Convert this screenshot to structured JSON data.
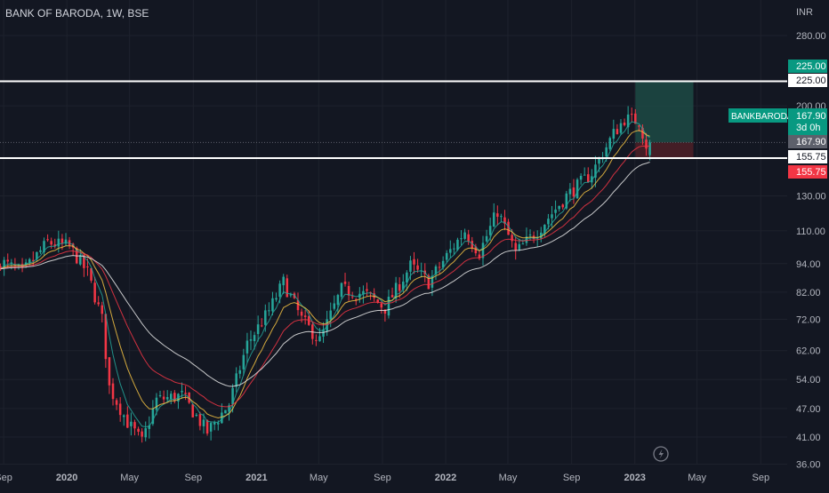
{
  "header": {
    "title": "BANK OF BARODA, 1W, BSE"
  },
  "price_axis": {
    "currency": "INR"
  },
  "symbol_tag": {
    "symbol": "BANKBARODA",
    "price": "167.90",
    "countdown": "3d 0h"
  },
  "price_labels": {
    "target": "225.00",
    "target_line": "225.00",
    "last": "167.90",
    "stop_line": "155.75",
    "stop": "155.75"
  },
  "colors": {
    "background": "#131722",
    "up": "#26a69a",
    "down": "#f23645",
    "ema_fast": "#26a69a",
    "ema_mid": "#f6c343",
    "ema_slow": "#f23645",
    "ema_long": "#e8e8e8",
    "target_zone": "#1d4a44",
    "stop_zone": "#4a1f27"
  },
  "chart_data": {
    "type": "candlestick",
    "title": "BANK OF BARODA, 1W, BSE",
    "yscale": "log",
    "ylim": [
      36,
      300
    ],
    "y_ticks": [
      280,
      225,
      200,
      155.75,
      130,
      110,
      94,
      82,
      72,
      62,
      54,
      47,
      41,
      36
    ],
    "y_tick_labels": [
      "280.00",
      "225.00",
      "200.00",
      "155.75",
      "130.00",
      "110.00",
      "94.00",
      "82.00",
      "72.00",
      "62.00",
      "54.00",
      "47.00",
      "41.00",
      "36.00"
    ],
    "x_tick_labels": [
      "Sep",
      "2020",
      "May",
      "Sep",
      "2021",
      "May",
      "Sep",
      "2022",
      "May",
      "Sep",
      "2023",
      "May",
      "Sep"
    ],
    "x_tick_dates": [
      "2019-09-01",
      "2020-01-01",
      "2020-05-01",
      "2020-09-01",
      "2021-01-01",
      "2021-05-01",
      "2021-09-01",
      "2022-01-01",
      "2022-05-01",
      "2022-09-01",
      "2023-01-01",
      "2023-05-01",
      "2023-09-01"
    ],
    "xlim": [
      "2019-08-25",
      "2023-10-22"
    ],
    "weekly_close_path": [
      [
        "2019-08-26",
        95
      ],
      [
        "2019-10-07",
        90
      ],
      [
        "2019-11-25",
        104
      ],
      [
        "2020-01-06",
        102
      ],
      [
        "2020-02-10",
        90
      ],
      [
        "2020-03-09",
        72
      ],
      [
        "2020-03-23",
        52
      ],
      [
        "2020-04-27",
        44
      ],
      [
        "2020-05-25",
        40
      ],
      [
        "2020-06-22",
        49
      ],
      [
        "2020-08-10",
        50
      ],
      [
        "2020-09-28",
        42
      ],
      [
        "2020-11-09",
        48
      ],
      [
        "2020-12-14",
        64
      ],
      [
        "2021-01-25",
        75
      ],
      [
        "2021-02-22",
        86
      ],
      [
        "2021-03-29",
        72
      ],
      [
        "2021-05-03",
        65
      ],
      [
        "2021-06-14",
        83
      ],
      [
        "2021-08-02",
        81
      ],
      [
        "2021-09-06",
        76
      ],
      [
        "2021-10-25",
        93
      ],
      [
        "2021-11-29",
        86
      ],
      [
        "2022-01-10",
        100
      ],
      [
        "2022-02-07",
        110
      ],
      [
        "2022-03-07",
        99
      ],
      [
        "2022-04-11",
        121
      ],
      [
        "2022-05-16",
        99
      ],
      [
        "2022-06-27",
        110
      ],
      [
        "2022-08-22",
        130
      ],
      [
        "2022-10-10",
        145
      ],
      [
        "2022-11-21",
        175
      ],
      [
        "2022-12-12",
        188
      ],
      [
        "2023-01-09",
        186
      ],
      [
        "2023-01-23",
        166
      ],
      [
        "2023-01-30",
        167.9
      ]
    ],
    "ema_series": [
      "fast",
      "mid",
      "slow",
      "long"
    ],
    "position": {
      "type": "long",
      "entry": 167.9,
      "target": 225.0,
      "stop": 155.75,
      "start": "2023-01-02",
      "end": "2023-04-24"
    },
    "horizontal_lines": [
      225.0,
      155.75
    ]
  }
}
